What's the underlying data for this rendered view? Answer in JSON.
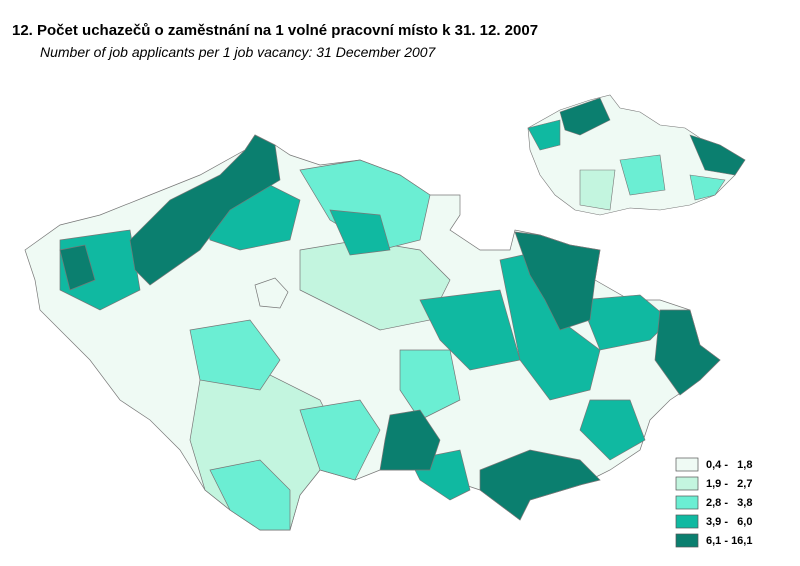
{
  "title": "12. Počet uchazečů o zaměstnání na 1 volné pracovní místo k 31. 12. 2007",
  "subtitle": "Number of job applicants per 1 job vacancy: 31 December 2007",
  "legend": [
    {
      "label": "0,4 -   1,8",
      "color": "#effaf4"
    },
    {
      "label": "1,9 -   2,7",
      "color": "#c3f5df"
    },
    {
      "label": "2,8 -   3,8",
      "color": "#6beed3"
    },
    {
      "label": "3,9 -   6,0",
      "color": "#10b9a1"
    },
    {
      "label": "6,1 - 16,1",
      "color": "#0b7f6f"
    }
  ]
}
